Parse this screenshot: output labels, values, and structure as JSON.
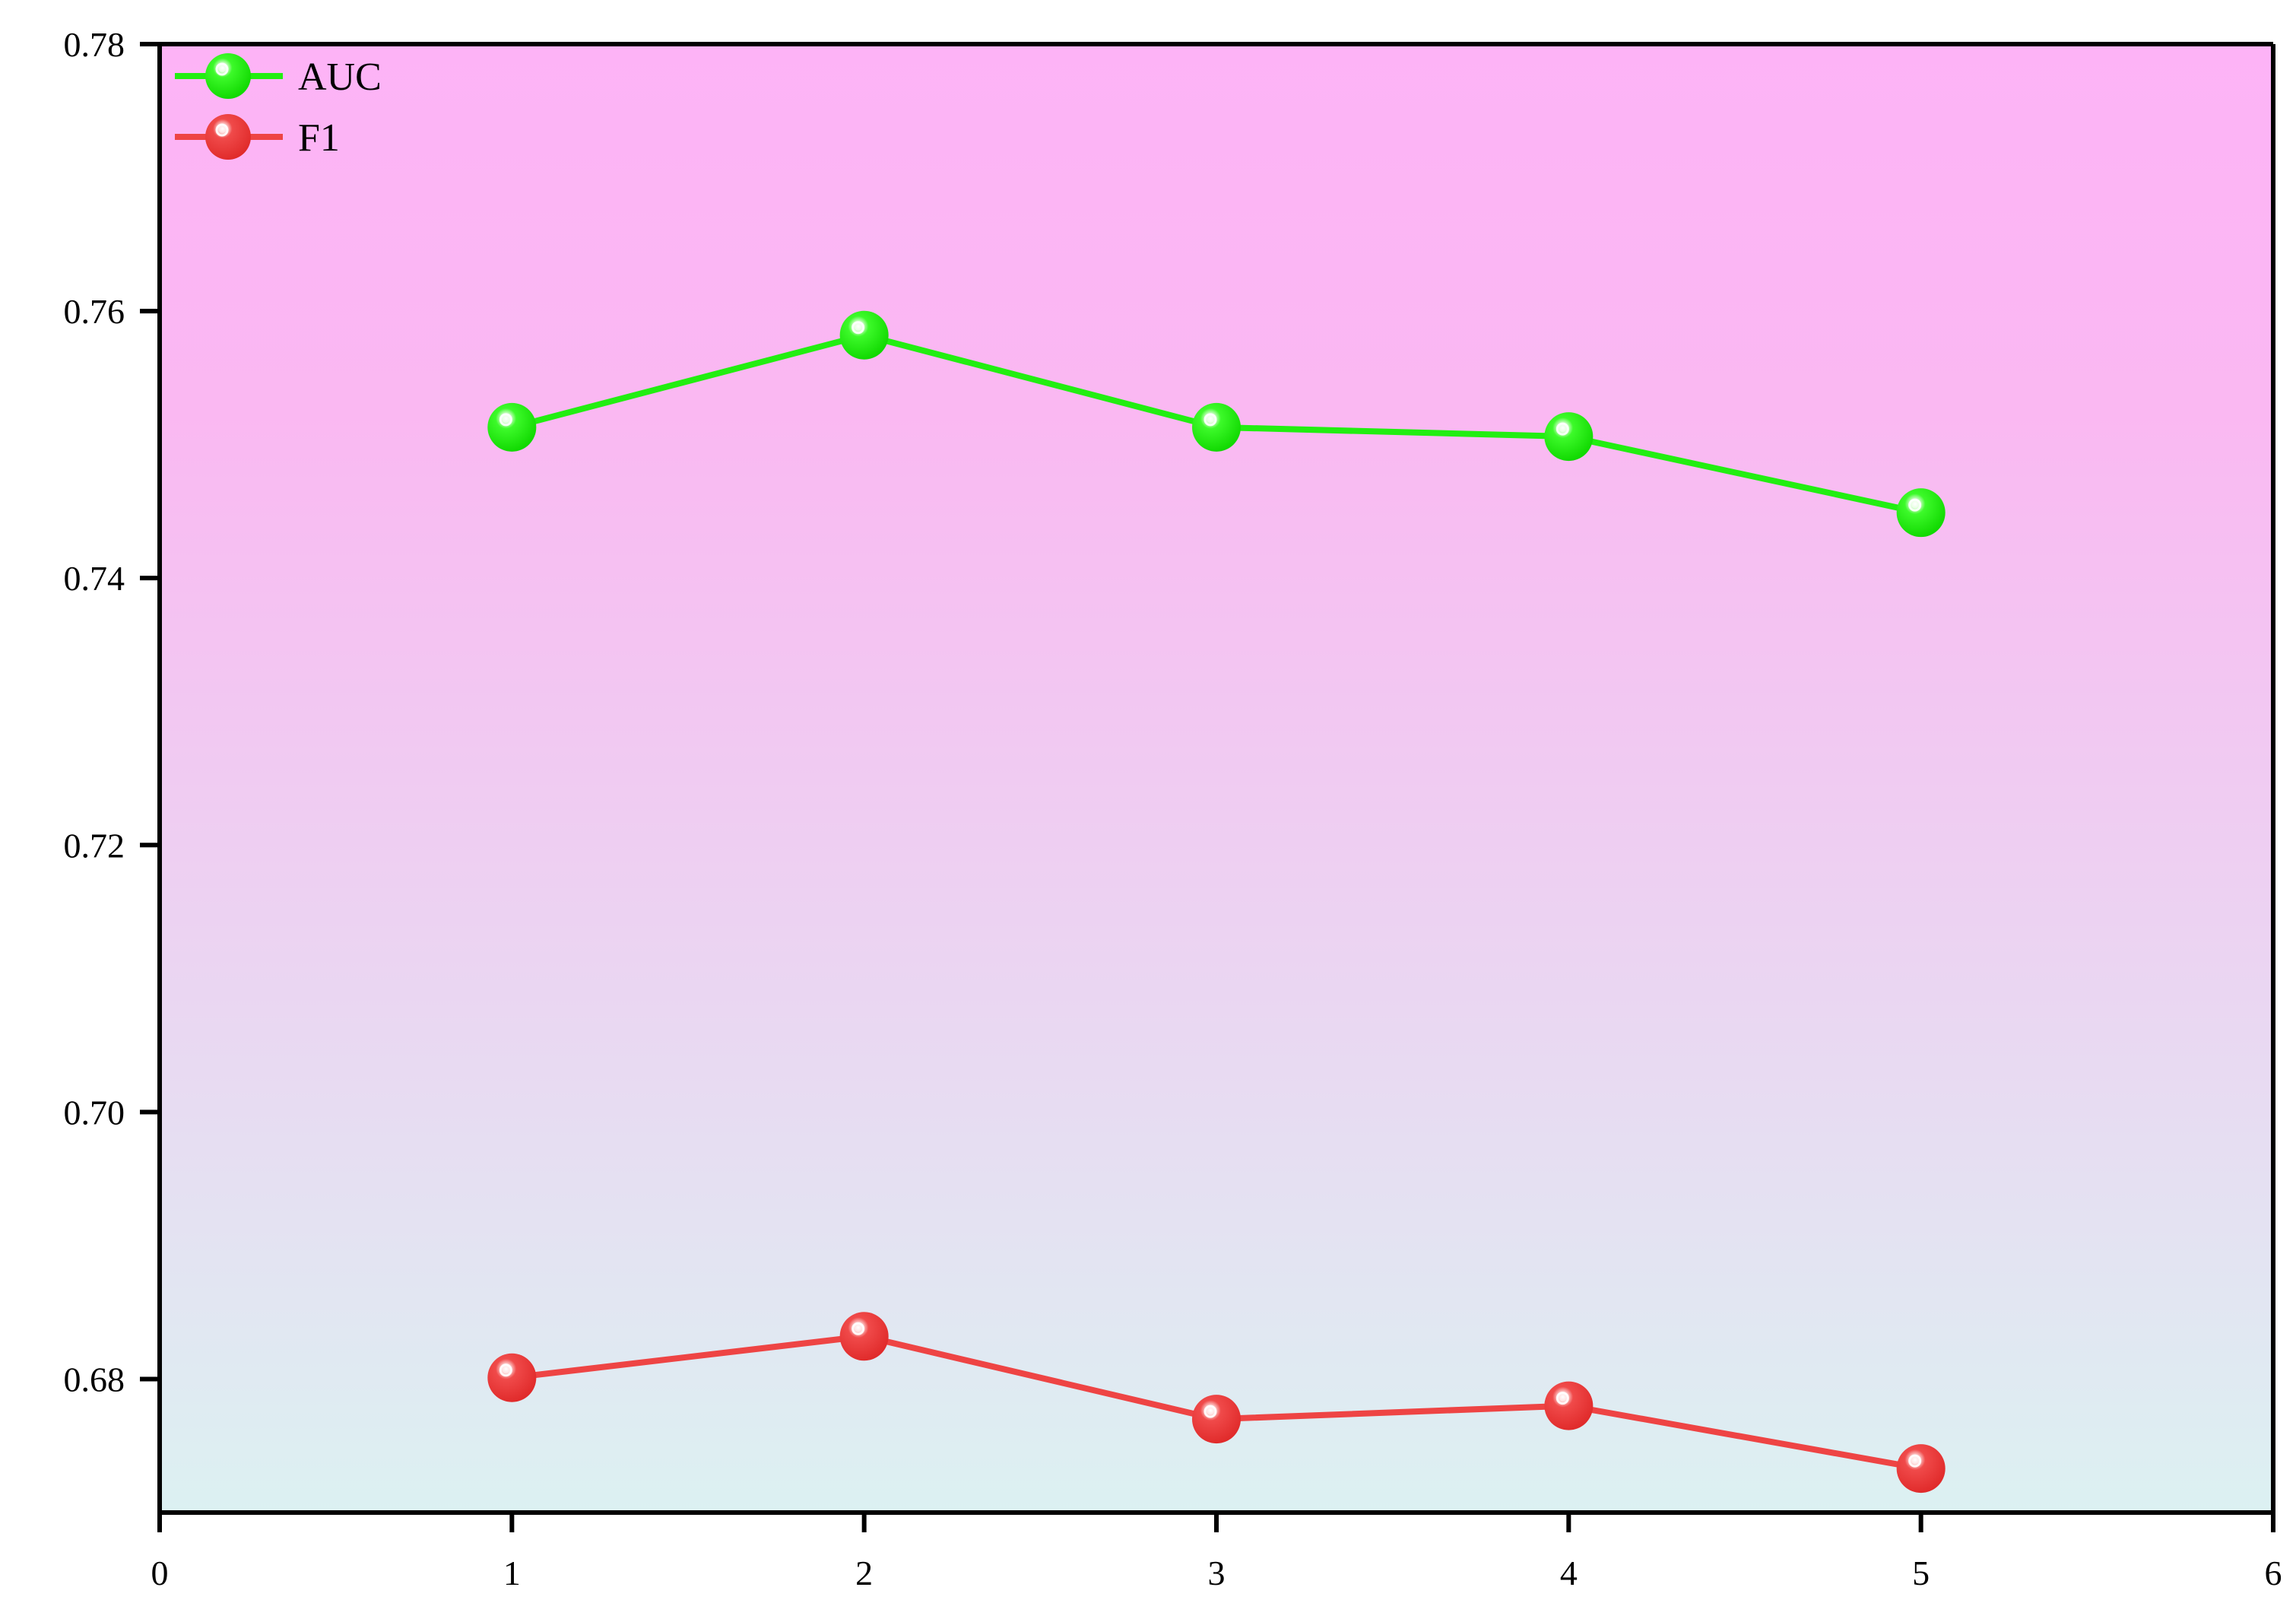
{
  "chart_data": {
    "type": "line",
    "title": "",
    "xlabel": "",
    "ylabel": "",
    "xlim": [
      0,
      6
    ],
    "ylim": [
      0.67,
      0.78
    ],
    "x_ticks": [
      "0",
      "1",
      "2",
      "3",
      "4",
      "5",
      "6"
    ],
    "y_ticks": [
      "0.68",
      "0.70",
      "0.72",
      "0.74",
      "0.76",
      "0.78"
    ],
    "x": [
      1,
      2,
      3,
      4,
      5
    ],
    "series": [
      {
        "name": "AUC",
        "color": "#22ee11",
        "values": [
          0.7513,
          0.7582,
          0.7513,
          0.7506,
          0.7449
        ]
      },
      {
        "name": "F1",
        "color": "#ee4444",
        "values": [
          0.6801,
          0.6832,
          0.677,
          0.678,
          0.6733
        ]
      }
    ],
    "legend_position": "top-left",
    "grid": false,
    "background_gradient": [
      "#fdb3f6",
      "#dcf1f2"
    ]
  }
}
